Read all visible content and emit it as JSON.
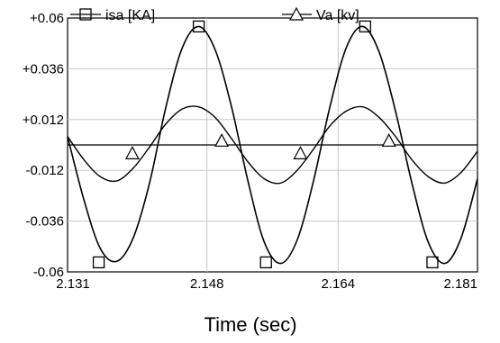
{
  "chart_data": {
    "type": "line",
    "title": "",
    "xlabel": "Time (sec)",
    "ylabel": "",
    "xlim": [
      2.131,
      2.181
    ],
    "ylim": [
      -0.06,
      0.06
    ],
    "x_ticks": [
      "2.131",
      "2.148",
      "2.164",
      "2.181"
    ],
    "x_tick_values": [
      2.131,
      2.148,
      2.164,
      2.181
    ],
    "y_ticks": [
      "+0.06",
      "+0.036",
      "+0.012",
      "-0.012",
      "-0.036",
      "-0.06"
    ],
    "y_tick_values": [
      0.06,
      0.036,
      0.012,
      -0.012,
      -0.036,
      -0.06
    ],
    "grid": true,
    "legend_position": "top",
    "series": [
      {
        "name": "isa  [KA]",
        "marker": "square",
        "color": "#000000",
        "x": [
          2.131,
          2.133,
          2.135,
          2.137,
          2.139,
          2.141,
          2.143,
          2.145,
          2.147,
          2.149,
          2.151,
          2.153,
          2.155,
          2.157,
          2.159,
          2.161,
          2.163,
          2.165,
          2.167,
          2.169,
          2.171,
          2.173,
          2.175,
          2.177,
          2.179,
          2.181
        ],
        "values": [
          0.004,
          -0.026,
          -0.049,
          -0.055,
          -0.044,
          -0.018,
          0.018,
          0.046,
          0.056,
          0.045,
          0.018,
          -0.017,
          -0.046,
          -0.056,
          -0.045,
          -0.017,
          0.018,
          0.046,
          0.056,
          0.044,
          0.016,
          -0.018,
          -0.046,
          -0.056,
          -0.044,
          -0.016
        ],
        "marker_x": [
          2.1348,
          2.147,
          2.1552,
          2.1673,
          2.1755
        ],
        "marker_values": [
          -0.0555,
          0.056,
          -0.0555,
          0.056,
          -0.0555
        ]
      },
      {
        "name": "Va  [kv]",
        "marker": "triangle",
        "color": "#000000",
        "x": [
          2.131,
          2.133,
          2.135,
          2.137,
          2.139,
          2.141,
          2.143,
          2.145,
          2.147,
          2.149,
          2.151,
          2.153,
          2.155,
          2.157,
          2.159,
          2.161,
          2.163,
          2.165,
          2.167,
          2.169,
          2.171,
          2.173,
          2.175,
          2.177,
          2.179,
          2.181
        ],
        "values": [
          0.004,
          -0.007,
          -0.015,
          -0.017,
          -0.011,
          -0.001,
          0.01,
          0.017,
          0.018,
          0.013,
          0.003,
          -0.008,
          -0.016,
          -0.018,
          -0.012,
          -0.002,
          0.009,
          0.016,
          0.018,
          0.013,
          0.004,
          -0.007,
          -0.015,
          -0.018,
          -0.013,
          -0.003
        ],
        "marker_x": [
          2.1389,
          2.1498,
          2.1594,
          2.1702
        ],
        "marker_values": [
          -0.004,
          0.002,
          -0.004,
          0.002
        ]
      }
    ]
  }
}
